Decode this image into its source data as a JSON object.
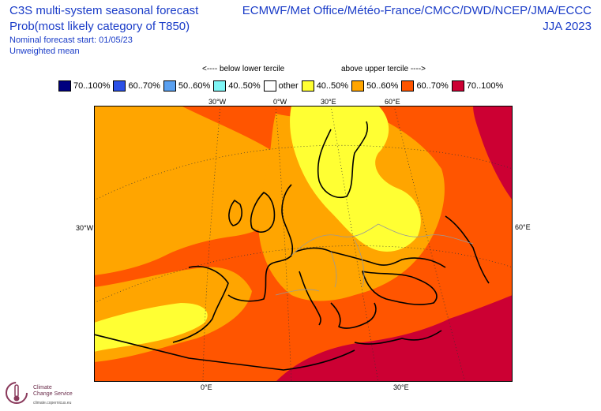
{
  "header": {
    "title_line1": "C3S multi-system seasonal forecast",
    "title_line2": "Prob(most likely category of T850)",
    "title_line3": "Nominal forecast start: 01/05/23",
    "title_line4": "Unweighted mean",
    "systems": "ECMWF/Met Office/Météo-France/CMCC/DWD/NCEP/JMA/ECCC",
    "season": "JJA 2023"
  },
  "tercile": {
    "below": "<---- below lower tercile",
    "above": "above upper tercile ---->"
  },
  "legend": [
    {
      "label": "70..100%",
      "color": "#00007f"
    },
    {
      "label": "60..70%",
      "color": "#2b50e6"
    },
    {
      "label": "50..60%",
      "color": "#5aa0f0"
    },
    {
      "label": "40..50%",
      "color": "#7ff5f5"
    },
    {
      "label": "other",
      "color": "#ffffff"
    },
    {
      "label": "40..50%",
      "color": "#ffff33"
    },
    {
      "label": "50..60%",
      "color": "#ffa500"
    },
    {
      "label": "60..70%",
      "color": "#ff5500"
    },
    {
      "label": "70..100%",
      "color": "#cc0033"
    }
  ],
  "axes": {
    "top_30w": "30°W",
    "top_0w": "0°W",
    "top_30e": "30°E",
    "top_60e": "60°E",
    "left_30w": "30°W",
    "right_60e": "60°E",
    "bottom_0e": "0°E",
    "bottom_30e": "30°E"
  },
  "logo": {
    "name_line1": "Climate",
    "name_line2": "Change Service",
    "url": "climate.copernicus.eu"
  }
}
